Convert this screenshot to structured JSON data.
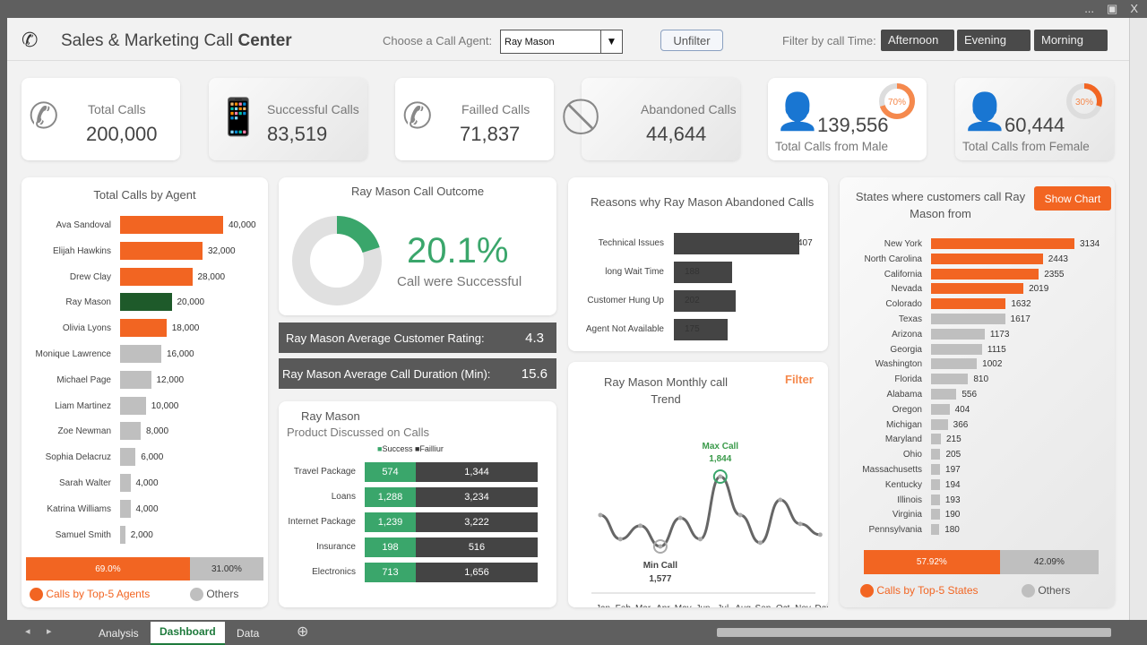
{
  "window": {
    "controls": [
      "...",
      "restore",
      "X"
    ]
  },
  "header": {
    "title_regular": "Sales & Marketing Call ",
    "title_bold": "Center",
    "agent_label": "Choose a Call Agent:",
    "agent_value": "Ray Mason",
    "unfilter": "Unfilter",
    "time_label": "Filter by call Time:",
    "time_buttons": [
      "Afternoon",
      "Evening",
      "Morning"
    ]
  },
  "kpis": [
    {
      "label": "Total Calls",
      "value": "200,000",
      "icon": "phone-ringing-icon"
    },
    {
      "label": "Successful Calls",
      "value": "83,519",
      "icon": "phone-check-icon"
    },
    {
      "label": "Failled Calls",
      "value": "71,837",
      "icon": "phone-circle-icon"
    },
    {
      "label": "Abandoned Calls",
      "value": "44,644",
      "icon": "phone-prohibited-icon"
    },
    {
      "label": "Total Calls from Male",
      "value": "139,556",
      "pct": "70%",
      "pct_value": 70,
      "icon": "male-icon"
    },
    {
      "label": "Total Calls from Female",
      "value": "60,444",
      "pct": "30%",
      "pct_value": 30,
      "icon": "female-icon"
    }
  ],
  "colors": {
    "orange": "#f26522",
    "green": "#3aa66b",
    "dark_green": "#1e5a2a",
    "dark": "#444444",
    "grey": "#bfbfbf"
  },
  "chart_data": [
    {
      "type": "bar",
      "title": "Total Calls by Agent",
      "orientation": "horizontal",
      "categories": [
        "Ava Sandoval",
        "Elijah Hawkins",
        "Drew Clay",
        "Ray Mason",
        "Olivia Lyons",
        "Monique Lawrence",
        "Michael Page",
        "Liam Martinez",
        "Zoe Newman",
        "Sophia Delacruz",
        "Sarah Walter",
        "Katrina Williams",
        "Samuel Smith"
      ],
      "values": [
        40000,
        32000,
        28000,
        20000,
        18000,
        16000,
        12000,
        10000,
        8000,
        6000,
        4000,
        4000,
        2000
      ],
      "labels": [
        "40,000",
        "32,000",
        "28,000",
        "20,000",
        "18,000",
        "16,000",
        "12,000",
        "10,000",
        "8,000",
        "6,000",
        "4,000",
        "4,000",
        "2,000"
      ],
      "xlim": [
        0,
        40000
      ],
      "share": {
        "top": "69.0%",
        "top_value": 69.0,
        "others": "31.00%",
        "legend": [
          "Calls by Top-5 Agents",
          "Others"
        ]
      }
    },
    {
      "type": "pie",
      "title": "Ray Mason Call Outcome",
      "values": [
        20.1,
        79.9
      ],
      "big_label": "20.1%",
      "caption": "Call were Successful"
    },
    {
      "type": "bar",
      "title": "Reasons why Ray Mason Abandoned Calls",
      "orientation": "horizontal",
      "categories": [
        "Technical Issues",
        "long Wait Time",
        "Customer Hung Up",
        "Agent Not Available"
      ],
      "values": [
        407,
        188,
        202,
        175
      ],
      "xlim": [
        0,
        407
      ]
    },
    {
      "type": "bar",
      "title": "Product Discussed on Calls",
      "subtitle": "Ray Mason",
      "stacked": true,
      "categories": [
        "Travel Package",
        "Loans",
        "Internet Package",
        "Insurance",
        "Electronics"
      ],
      "series": [
        {
          "name": "Success",
          "values": [
            574,
            1288,
            1239,
            198,
            713
          ],
          "labels": [
            "574",
            "1,288",
            "1,239",
            "198",
            "713"
          ]
        },
        {
          "name": "Failliur",
          "values": [
            1344,
            3234,
            3222,
            516,
            1656
          ],
          "labels": [
            "1,344",
            "3,234",
            "3,222",
            "516",
            "1,656"
          ]
        }
      ]
    },
    {
      "type": "line",
      "title": "Ray Mason Monthly call Trend",
      "filter_label": "Filter",
      "categories": [
        "Jan",
        "Feb",
        "Mar",
        "Apr",
        "May",
        "Jun",
        "Jul",
        "Aug",
        "Sep",
        "Oct",
        "Nov",
        "Dec"
      ],
      "values": [
        1697,
        1605,
        1656,
        1577,
        1686,
        1605,
        1844,
        1697,
        1591,
        1755,
        1663,
        1622
      ],
      "max_label": "Max Call",
      "max_value": "1,844",
      "min_label": "Min Call",
      "min_value": "1,577"
    },
    {
      "type": "bar",
      "title": "States where customers call Ray Mason from",
      "button": "Show Chart",
      "orientation": "horizontal",
      "categories": [
        "New York",
        "North Carolina",
        "California",
        "Nevada",
        "Colorado",
        "Texas",
        "Arizona",
        "Georgia",
        "Washington",
        "Florida",
        "Alabama",
        "Oregon",
        "Michigan",
        "Maryland",
        "Ohio",
        "Massachusetts",
        "Kentucky",
        "Illinois",
        "Virginia",
        "Pennsylvania"
      ],
      "values": [
        3134,
        2443,
        2355,
        2019,
        1632,
        1617,
        1173,
        1115,
        1002,
        810,
        556,
        404,
        366,
        215,
        205,
        197,
        194,
        193,
        190,
        180
      ],
      "xlim": [
        0,
        3134
      ],
      "share": {
        "top": "57.92%",
        "top_value": 57.92,
        "others": "42.09%",
        "legend": [
          "Calls by Top-5 States",
          "Others"
        ]
      }
    }
  ],
  "stats": [
    {
      "label": "Ray Mason Average Customer Rating:",
      "value": "4.3"
    },
    {
      "label": "Ray Mason Average Call Duration (Min):",
      "value": "15.6"
    }
  ],
  "sheet_tabs": [
    "Analysis",
    "Dashboard",
    "Data"
  ]
}
